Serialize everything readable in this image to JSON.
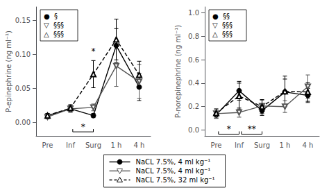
{
  "chart_data": [
    {
      "type": "line",
      "ylabel": "P-epinephrine (ng ml⁻¹)",
      "categories": [
        "Pre",
        "Inf",
        "Surg",
        "1 h",
        "4 h"
      ],
      "series": [
        {
          "name": "NaCL 7.5%, 4 ml kg⁻¹",
          "color": "#000000",
          "marker": "circle",
          "line_style": "solid",
          "values": [
            0.01,
            0.02,
            0.01,
            0.113,
            0.052
          ],
          "errors": [
            0.003,
            0.005,
            0.003,
            0.025,
            0.02
          ]
        },
        {
          "name": "NaCL 7.5%, 4 ml kg⁻¹",
          "color": "#555555",
          "marker": "open-triangle-down",
          "line_style": "solid",
          "values": [
            0.008,
            0.02,
            0.022,
            0.083,
            0.06
          ],
          "errors": [
            0.003,
            0.005,
            0.005,
            0.03,
            0.025
          ]
        },
        {
          "name": "NaCL 7.5%, 32 ml kg⁻¹",
          "color": "#000000",
          "marker": "open-triangle-up",
          "line_style": "dashed",
          "values": [
            0.01,
            0.021,
            0.071,
            0.122,
            0.07
          ],
          "errors": [
            0.003,
            0.005,
            0.02,
            0.03,
            0.02
          ]
        }
      ],
      "ylim": [
        -0.02,
        0.17
      ],
      "yticks": [
        {
          "value": 0.0,
          "label": "0.00"
        },
        0.05,
        {
          "value": 0.1,
          "label": "0.10"
        },
        0.15
      ],
      "grid": false,
      "legend": "bottom",
      "annotations": [
        {
          "text": "*",
          "x": "Surg",
          "y": 0.098
        }
      ],
      "brackets": [
        {
          "text": "*",
          "from": "Inf",
          "to": "Surg",
          "y": -0.014
        }
      ],
      "inset_labels": [
        "●  §",
        "▽  §§§",
        "△  §§§"
      ]
    },
    {
      "type": "line",
      "ylabel": "P-norepinephrine (ng ml⁻¹)",
      "categories": [
        "Pre",
        "Inf",
        "Surg",
        "1 h",
        "4 h"
      ],
      "series": [
        {
          "name": "NaCL 7.5%, 4 ml kg⁻¹",
          "color": "#000000",
          "marker": "circle",
          "line_style": "solid",
          "values": [
            0.13,
            0.335,
            0.165,
            0.325,
            0.295
          ],
          "errors": [
            0.03,
            0.08,
            0.04,
            0.11,
            0.06
          ]
        },
        {
          "name": "NaCL 7.5%, 4 ml kg⁻¹",
          "color": "#555555",
          "marker": "open-triangle-down",
          "line_style": "solid",
          "values": [
            0.14,
            0.15,
            0.205,
            0.2,
            0.37
          ],
          "errors": [
            0.04,
            0.04,
            0.05,
            0.05,
            0.1
          ]
        },
        {
          "name": "NaCL 7.5%, 32 ml kg⁻¹",
          "color": "#000000",
          "marker": "open-triangle-up",
          "line_style": "dashed",
          "values": [
            0.145,
            0.29,
            0.2,
            0.33,
            0.325
          ],
          "errors": [
            0.035,
            0.11,
            0.06,
            0.13,
            0.08
          ]
        }
      ],
      "ylim": [
        -0.05,
        1.05
      ],
      "yticks": [
        {
          "value": 0.0,
          "label": "0.0"
        },
        0.2,
        0.4,
        0.6,
        0.8,
        {
          "value": 1.0,
          "label": "1.0"
        }
      ],
      "grid": false,
      "brackets": [
        {
          "text": "*",
          "from": "Pre",
          "to": "Inf",
          "y": -0.035
        },
        {
          "text": "**",
          "from": "Inf",
          "to": "Surg",
          "y": -0.035
        }
      ],
      "inset_labels": [
        "●  §§",
        "▽  §§§",
        "△  §§§"
      ]
    }
  ]
}
